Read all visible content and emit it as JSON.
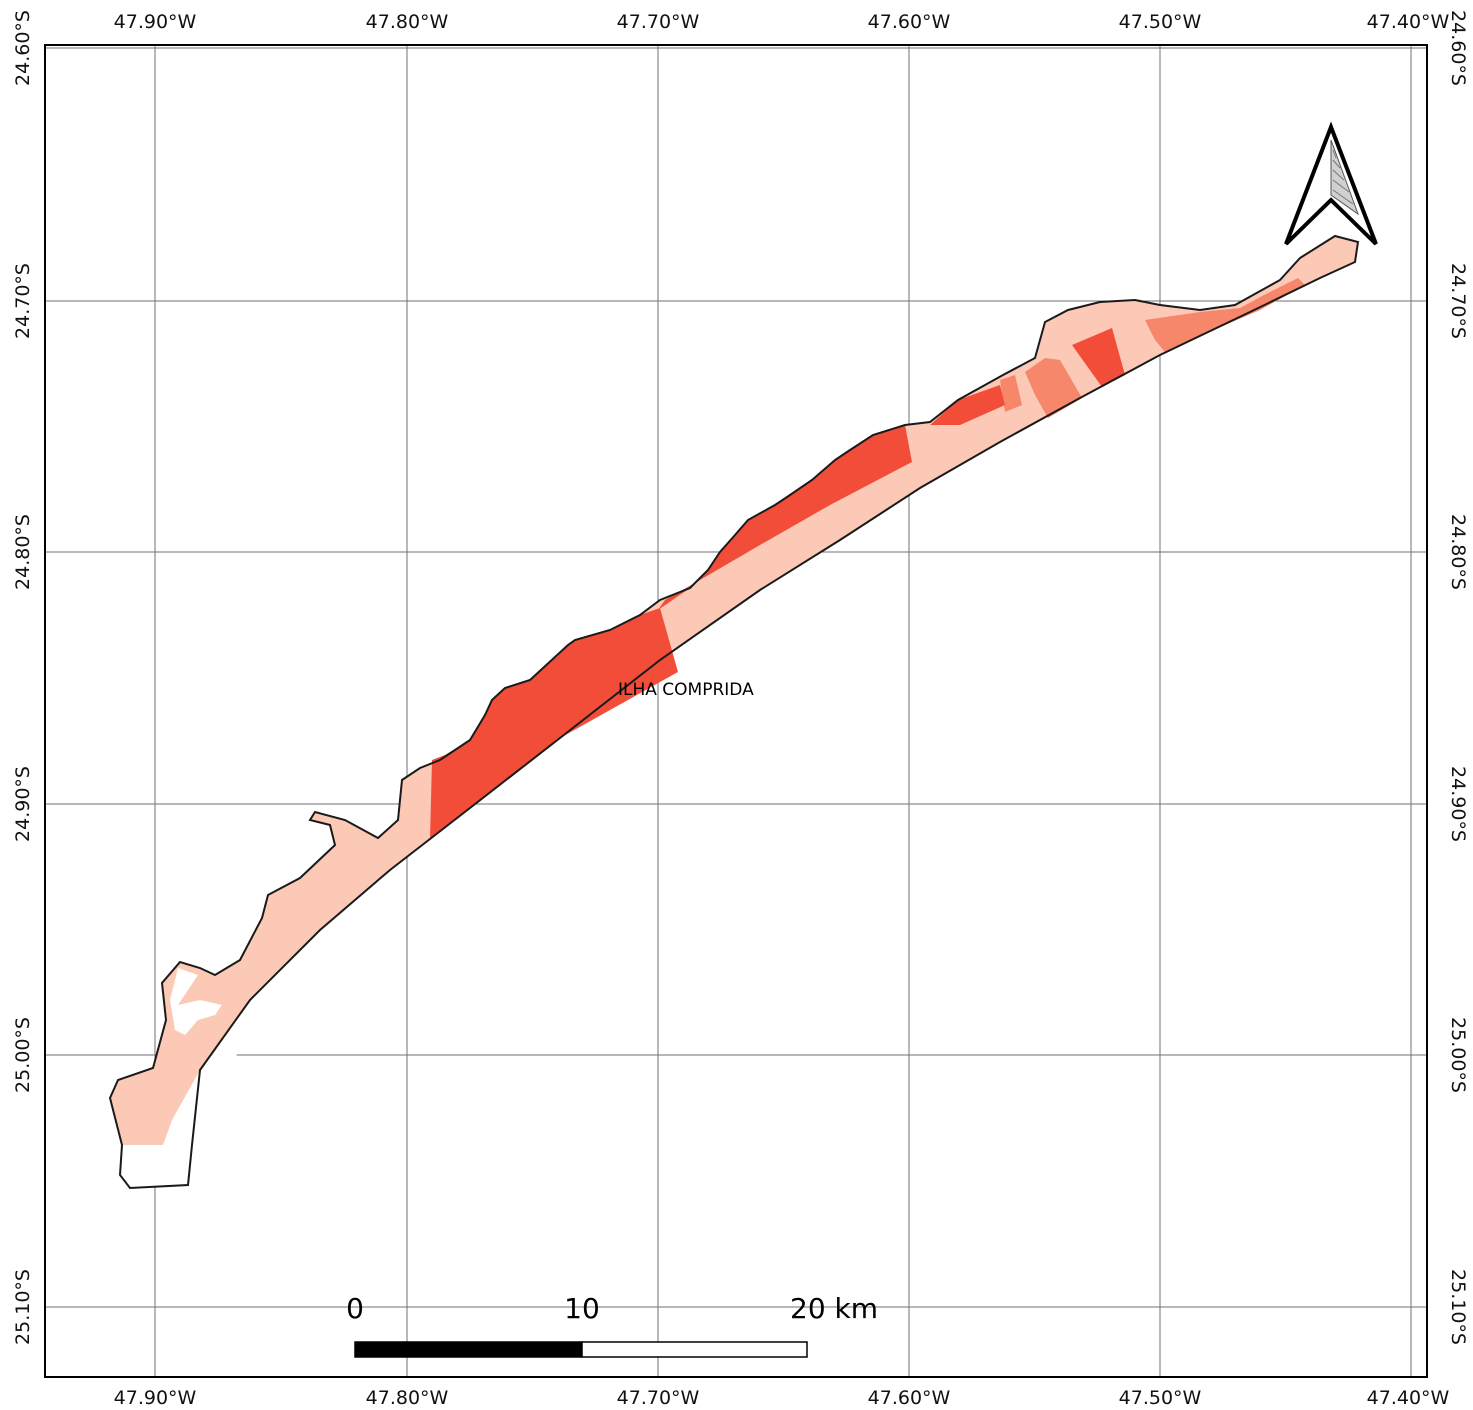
{
  "map": {
    "place_label": "ILHA COMPRIDA",
    "colors": {
      "frame": "#000000",
      "grid": "#707070",
      "coastline": "#1a1a1a",
      "class_low": "#fbc9b6",
      "class_mid": "#f7876a",
      "class_high": "#f24d38"
    },
    "longitude_labels": [
      "47.90°W",
      "47.80°W",
      "47.70°W",
      "47.60°W",
      "47.50°W",
      "47.40°W"
    ],
    "latitude_labels": [
      "24.60°S",
      "24.70°S",
      "24.80°S",
      "24.90°S",
      "25.00°S",
      "25.10°S"
    ],
    "north_arrow": "north-arrow-icon",
    "scale_bar": {
      "labels": [
        "0",
        "10",
        "20 km"
      ]
    }
  }
}
